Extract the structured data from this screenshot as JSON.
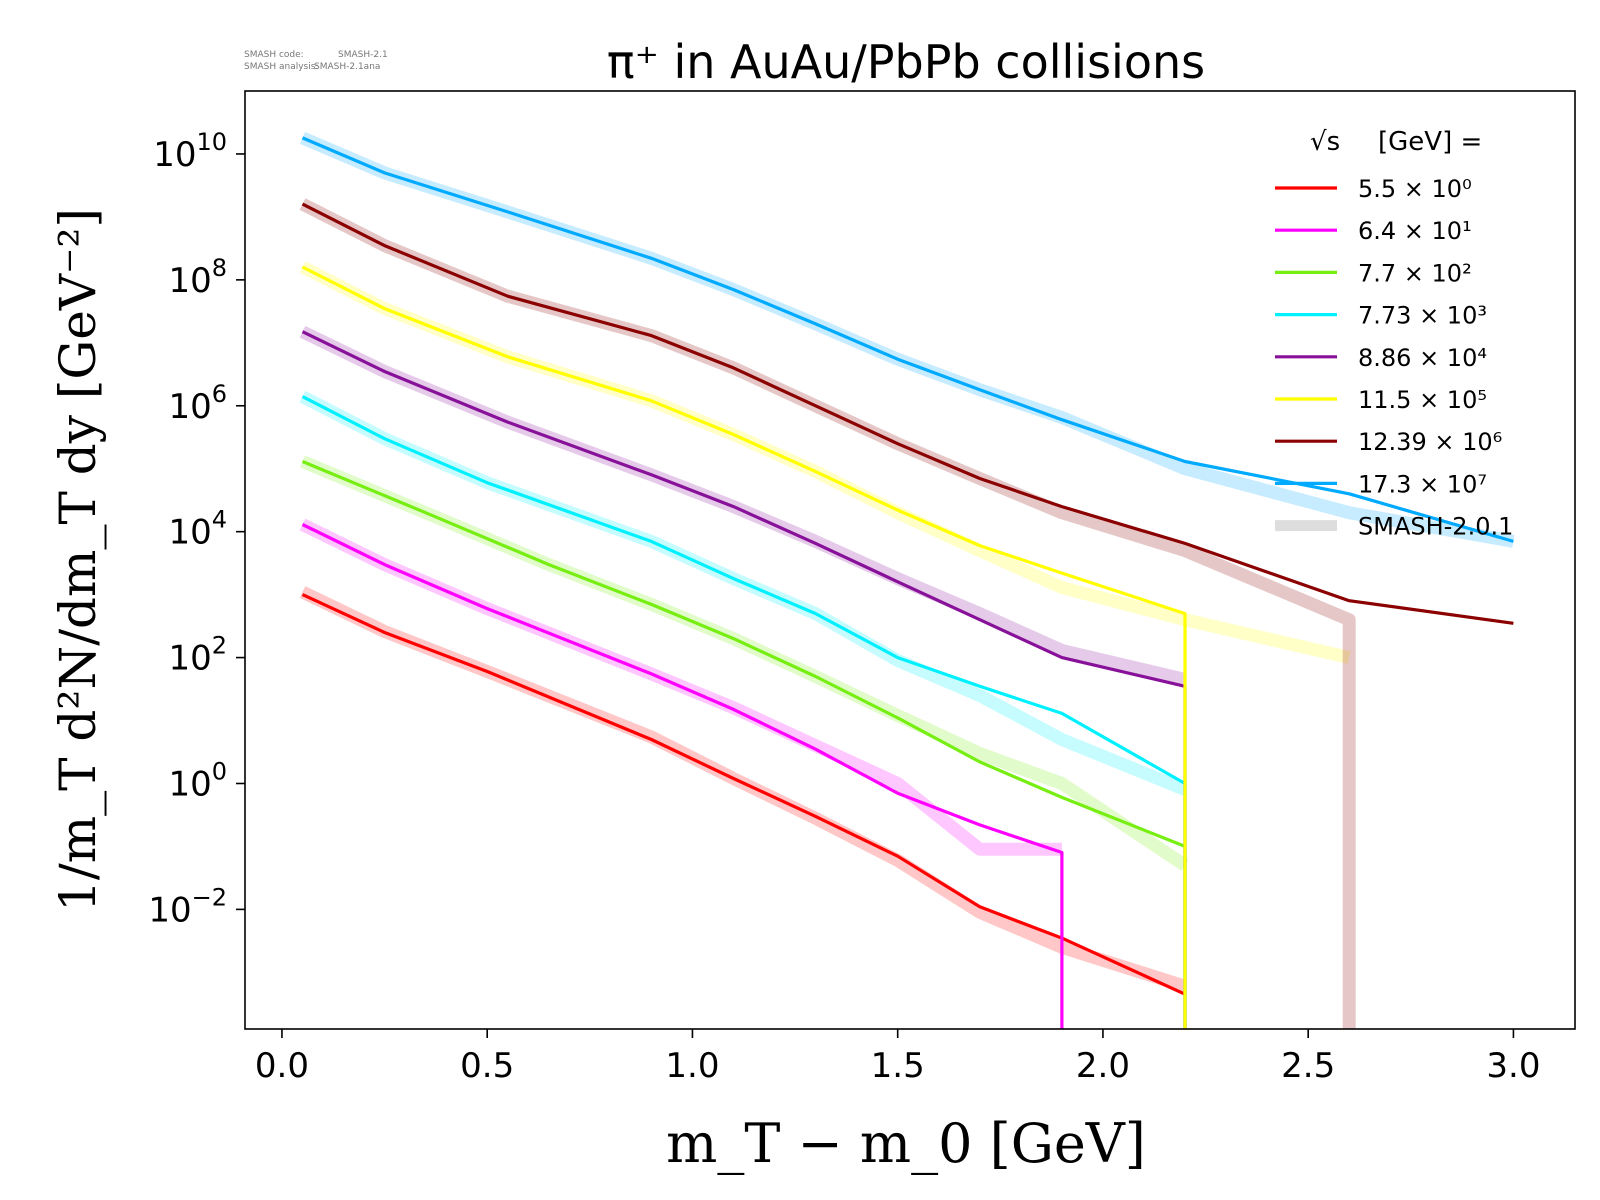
{
  "meta": {
    "code_label": "SMASH code:",
    "code_value": "SMASH-2.1",
    "analysis_label": "SMASH analysis:",
    "analysis_value": "SMASH-2.1ana"
  },
  "chart_data": {
    "type": "line",
    "title": "π⁺ in AuAu/PbPb collisions",
    "xlabel": "m_T − m_0 [GeV]",
    "ylabel": "1/m_T d²N/dm_T dy [GeV⁻²]",
    "xlim": [
      -0.09,
      3.15
    ],
    "ylim_log10": [
      -3.9,
      11.0
    ],
    "yscale": "log",
    "x_ticks": [
      "0.0",
      "0.5",
      "1.0",
      "1.5",
      "2.0",
      "2.5",
      "3.0"
    ],
    "x_tick_values": [
      0.0,
      0.5,
      1.0,
      1.5,
      2.0,
      2.5,
      3.0
    ],
    "y_ticks": [
      {
        "base": "10",
        "exp": "10",
        "value_log10": 10
      },
      {
        "base": "10",
        "exp": "8",
        "value_log10": 8
      },
      {
        "base": "10",
        "exp": "6",
        "value_log10": 6
      },
      {
        "base": "10",
        "exp": "4",
        "value_log10": 4
      },
      {
        "base": "10",
        "exp": "2",
        "value_log10": 2
      },
      {
        "base": "10",
        "exp": "0",
        "value_log10": 0
      },
      {
        "base": "10",
        "exp": "−2",
        "value_log10": -2
      }
    ],
    "legend": {
      "title_prefix": "√s",
      "title_suffix": "[GeV] =",
      "placement": "top-right",
      "reference_label": "SMASH-2.0.1",
      "reference_color": "#dddddd"
    },
    "series": [
      {
        "name": "5.5 × 10⁰",
        "color": "#ff0000",
        "x": [
          0.05,
          0.25,
          0.5,
          0.9,
          1.1,
          1.3,
          1.5,
          1.7,
          1.9,
          2.2
        ],
        "y": [
          1000.0,
          250.0,
          60.0,
          5.0,
          1.2,
          0.3,
          0.07,
          0.011,
          0.0035,
          0.00045
        ],
        "ref_x": [
          0.05,
          0.25,
          0.5,
          0.9,
          1.1,
          1.3,
          1.5,
          1.7,
          1.9,
          2.2
        ],
        "ref_y": [
          1100.0,
          260.0,
          60.0,
          5.5,
          1.2,
          0.28,
          0.06,
          0.009,
          0.0025,
          0.0006
        ]
      },
      {
        "name": "6.4 × 10¹",
        "color": "#ff00ff",
        "x": [
          0.05,
          0.25,
          0.5,
          0.9,
          1.1,
          1.3,
          1.5,
          1.7,
          1.9,
          1.9
        ],
        "y": [
          13000.0,
          3000.0,
          600.0,
          55.0,
          15.0,
          3.5,
          0.7,
          0.22,
          0.08,
          0.0001
        ],
        "ref_x": [
          0.05,
          0.25,
          0.5,
          0.9,
          1.1,
          1.3,
          1.5,
          1.7,
          1.9
        ],
        "ref_y": [
          13000.0,
          3000.0,
          600.0,
          55.0,
          16.0,
          4.0,
          1.0,
          0.09,
          0.09
        ]
      },
      {
        "name": "7.7 × 10²",
        "color": "#77ee11",
        "x": [
          0.05,
          0.35,
          0.65,
          0.9,
          1.1,
          1.3,
          1.5,
          1.7,
          1.9,
          2.2,
          2.2
        ],
        "y": [
          130000.0,
          20000.0,
          3000.0,
          700.0,
          200.0,
          50.0,
          11.0,
          2.2,
          0.6,
          0.1,
          0.0001
        ],
        "ref_x": [
          0.05,
          0.35,
          0.65,
          0.9,
          1.1,
          1.3,
          1.5,
          1.7,
          1.9,
          2.2
        ],
        "ref_y": [
          130000.0,
          20000.0,
          3000.0,
          700.0,
          200.0,
          50.0,
          12.0,
          3.0,
          1.0,
          0.05
        ]
      },
      {
        "name": "7.73 × 10³",
        "color": "#00f0ff",
        "x": [
          0.05,
          0.25,
          0.5,
          0.9,
          1.1,
          1.3,
          1.5,
          1.7,
          1.9,
          2.2,
          2.2
        ],
        "y": [
          1400000.0,
          300000.0,
          60000.0,
          7000.0,
          1800.0,
          500.0,
          100.0,
          35.0,
          13.0,
          1.0,
          0.0001
        ],
        "ref_x": [
          0.05,
          0.25,
          0.5,
          0.9,
          1.1,
          1.3,
          1.5,
          1.7,
          1.9,
          2.2
        ],
        "ref_y": [
          1400000.0,
          300000.0,
          60000.0,
          7000.0,
          1800.0,
          500.0,
          90.0,
          25.0,
          5.0,
          0.8
        ]
      },
      {
        "name": "8.86 × 10⁴",
        "color": "#881199",
        "x": [
          0.05,
          0.25,
          0.55,
          0.9,
          1.1,
          1.3,
          1.5,
          1.7,
          1.9,
          2.2,
          2.2
        ],
        "y": [
          15000000.0,
          3500000.0,
          550000.0,
          80000.0,
          25000.0,
          6500.0,
          1600.0,
          400.0,
          100.0,
          35.0,
          0.0001
        ],
        "ref_x": [
          0.05,
          0.25,
          0.55,
          0.9,
          1.1,
          1.3,
          1.5,
          1.7,
          1.9,
          2.2
        ],
        "ref_y": [
          15000000.0,
          3500000.0,
          550000.0,
          80000.0,
          25000.0,
          7000.0,
          1800.0,
          500.0,
          130.0,
          45.0
        ]
      },
      {
        "name": "11.5 × 10⁵",
        "color": "#ffff00",
        "x": [
          0.05,
          0.25,
          0.55,
          0.9,
          1.1,
          1.3,
          1.5,
          1.7,
          1.9,
          2.2,
          2.2
        ],
        "y": [
          160000000.0,
          35000000.0,
          6000000.0,
          1200000.0,
          350000.0,
          90000.0,
          22000.0,
          6000.0,
          2200.0,
          500.0,
          0.0001
        ],
        "ref_x": [
          0.05,
          0.25,
          0.55,
          0.9,
          1.1,
          1.3,
          1.5,
          1.7,
          1.9,
          2.2,
          2.6
        ],
        "ref_y": [
          160000000.0,
          35000000.0,
          6000000.0,
          1200000.0,
          350000.0,
          90000.0,
          20000.0,
          5000.0,
          1300.0,
          400.0,
          100.0
        ]
      },
      {
        "name": "12.39 × 10⁶",
        "color": "#8b0000",
        "x": [
          0.05,
          0.25,
          0.55,
          0.9,
          1.1,
          1.3,
          1.5,
          1.7,
          1.9,
          2.2,
          2.6,
          3.0
        ],
        "y": [
          1600000000.0,
          350000000.0,
          55000000.0,
          13000000.0,
          4000000.0,
          1000000.0,
          250000.0,
          70000.0,
          25000.0,
          6500.0,
          800.0,
          350.0
        ],
        "ref_x": [
          0.05,
          0.25,
          0.55,
          0.9,
          1.1,
          1.3,
          1.5,
          1.7,
          1.9,
          2.2,
          2.6,
          2.6
        ],
        "ref_y": [
          1600000000.0,
          350000000.0,
          55000000.0,
          13000000.0,
          4000000.0,
          1000000.0,
          250000.0,
          70000.0,
          20000.0,
          5000.0,
          400.0,
          0.0001
        ]
      },
      {
        "name": "17.3 × 10⁷",
        "color": "#00aaff",
        "x": [
          0.05,
          0.25,
          0.55,
          0.9,
          1.1,
          1.3,
          1.5,
          1.7,
          1.9,
          2.2,
          2.6,
          3.0
        ],
        "y": [
          18000000000.0,
          5000000000.0,
          1200000000.0,
          220000000.0,
          70000000.0,
          20000000.0,
          5500000.0,
          1800000.0,
          600000.0,
          130000.0,
          40000.0,
          7000.0
        ],
        "ref_x": [
          0.05,
          0.25,
          0.55,
          0.9,
          1.1,
          1.3,
          1.5,
          1.7,
          1.9,
          2.2,
          2.6,
          3.0
        ],
        "ref_y": [
          18000000000.0,
          5000000000.0,
          1200000000.0,
          220000000.0,
          70000000.0,
          20000000.0,
          5500000.0,
          1800000.0,
          650000.0,
          100000.0,
          20000.0,
          7000.0
        ]
      }
    ]
  }
}
